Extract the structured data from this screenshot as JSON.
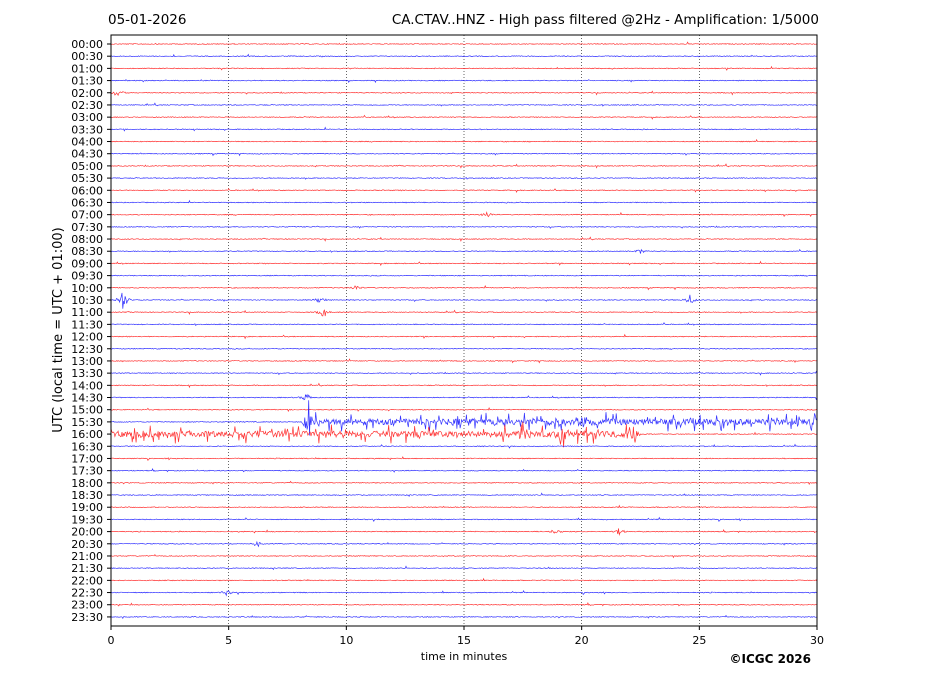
{
  "header": {
    "date": "05-01-2026",
    "title": "CA.CTAV..HNZ - High pass filtered @2Hz - Amplification: 1/5000"
  },
  "copyright": "©ICGC 2026",
  "chart_data": {
    "type": "line",
    "subtype": "helicorder",
    "xlabel": "time in minutes",
    "ylabel": "UTC (local time = UTC + 01:00)",
    "xlim": [
      0,
      30
    ],
    "xticks": [
      "0",
      "5",
      "10",
      "15",
      "20",
      "25",
      "30"
    ],
    "grid": "vertical dotted at 5-minute intervals",
    "colors": {
      "even_rows": "#ff0000",
      "odd_rows": "#0000ff"
    },
    "rows": [
      "00:00",
      "00:30",
      "01:00",
      "01:30",
      "02:00",
      "02:30",
      "03:00",
      "03:30",
      "04:00",
      "04:30",
      "05:00",
      "05:30",
      "06:00",
      "06:30",
      "07:00",
      "07:30",
      "08:00",
      "08:30",
      "09:00",
      "09:30",
      "10:00",
      "10:30",
      "11:00",
      "11:30",
      "12:00",
      "12:30",
      "13:00",
      "13:30",
      "14:00",
      "14:30",
      "15:00",
      "15:30",
      "16:00",
      "16:30",
      "17:00",
      "17:30",
      "18:00",
      "18:30",
      "19:00",
      "19:30",
      "20:00",
      "20:30",
      "21:00",
      "21:30",
      "22:00",
      "22:30",
      "23:00",
      "23:30"
    ],
    "events": [
      {
        "row": "02:00",
        "minute": 0.3,
        "amplitude": 0.3
      },
      {
        "row": "07:00",
        "minute": 16.0,
        "amplitude": 0.3
      },
      {
        "row": "08:30",
        "minute": 22.5,
        "amplitude": 0.2
      },
      {
        "row": "10:00",
        "minute": 10.4,
        "amplitude": 0.25
      },
      {
        "row": "10:30",
        "minute": 0.5,
        "amplitude": 1.0
      },
      {
        "row": "10:30",
        "minute": 8.9,
        "amplitude": 0.35
      },
      {
        "row": "10:30",
        "minute": 24.6,
        "amplitude": 0.45
      },
      {
        "row": "11:00",
        "minute": 9.0,
        "amplitude": 0.4
      },
      {
        "row": "14:30",
        "minute": 8.3,
        "amplitude": 0.4
      },
      {
        "row": "15:30",
        "minute": 8.4,
        "amplitude": 1.6
      },
      {
        "row": "15:30",
        "minute": 20.1,
        "amplitude": 0.6
      },
      {
        "row": "16:00",
        "minute": 17.5,
        "amplitude": 0.9
      },
      {
        "row": "16:00",
        "minute": 19.2,
        "amplitude": 0.8
      },
      {
        "row": "16:00",
        "minute": 22.2,
        "amplitude": 1.1
      },
      {
        "row": "20:00",
        "minute": 18.9,
        "amplitude": 0.3
      },
      {
        "row": "20:00",
        "minute": 21.6,
        "amplitude": 0.3
      },
      {
        "row": "20:30",
        "minute": 6.2,
        "amplitude": 0.25
      },
      {
        "row": "22:30",
        "minute": 4.9,
        "amplitude": 0.25
      }
    ],
    "active_segments": [
      {
        "row": "15:30",
        "from": 8.4,
        "to": 30,
        "level": 0.35
      },
      {
        "row": "16:00",
        "from": 0,
        "to": 22.3,
        "level": 0.35
      }
    ]
  }
}
